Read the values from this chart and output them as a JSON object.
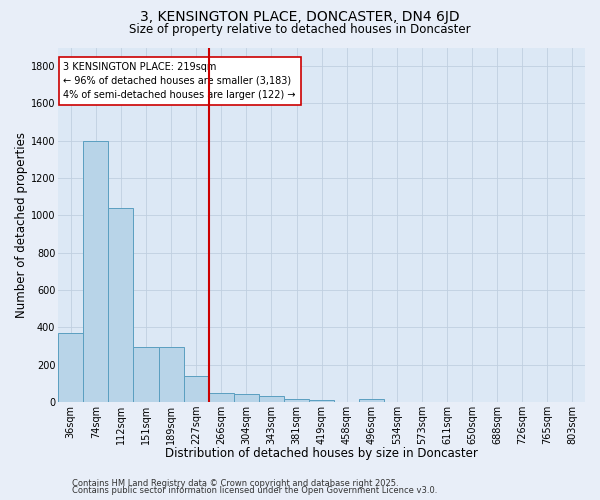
{
  "title": "3, KENSINGTON PLACE, DONCASTER, DN4 6JD",
  "subtitle": "Size of property relative to detached houses in Doncaster",
  "xlabel": "Distribution of detached houses by size in Doncaster",
  "ylabel": "Number of detached properties",
  "categories": [
    "36sqm",
    "74sqm",
    "112sqm",
    "151sqm",
    "189sqm",
    "227sqm",
    "266sqm",
    "304sqm",
    "343sqm",
    "381sqm",
    "419sqm",
    "458sqm",
    "496sqm",
    "534sqm",
    "573sqm",
    "611sqm",
    "650sqm",
    "688sqm",
    "726sqm",
    "765sqm",
    "803sqm"
  ],
  "values": [
    370,
    1400,
    1040,
    295,
    295,
    140,
    50,
    40,
    30,
    15,
    10,
    0,
    15,
    0,
    0,
    0,
    0,
    0,
    0,
    0,
    0
  ],
  "bar_color": "#b8d4e8",
  "bar_edge_color": "#5a9fc0",
  "vline_x": 5.5,
  "vline_color": "#cc0000",
  "annotation_text": "3 KENSINGTON PLACE: 219sqm\n← 96% of detached houses are smaller (3,183)\n4% of semi-detached houses are larger (122) →",
  "annotation_box_color": "white",
  "annotation_box_edge": "#cc0000",
  "ylim": [
    0,
    1900
  ],
  "yticks": [
    0,
    200,
    400,
    600,
    800,
    1000,
    1200,
    1400,
    1600,
    1800
  ],
  "footer_line1": "Contains HM Land Registry data © Crown copyright and database right 2025.",
  "footer_line2": "Contains public sector information licensed under the Open Government Licence v3.0.",
  "bg_color": "#e8eef8",
  "plot_bg_color": "#dce8f5",
  "grid_color": "#c0cfe0",
  "title_fontsize": 10,
  "subtitle_fontsize": 8.5,
  "tick_fontsize": 7,
  "label_fontsize": 8.5,
  "footer_fontsize": 6,
  "ann_fontsize": 7
}
